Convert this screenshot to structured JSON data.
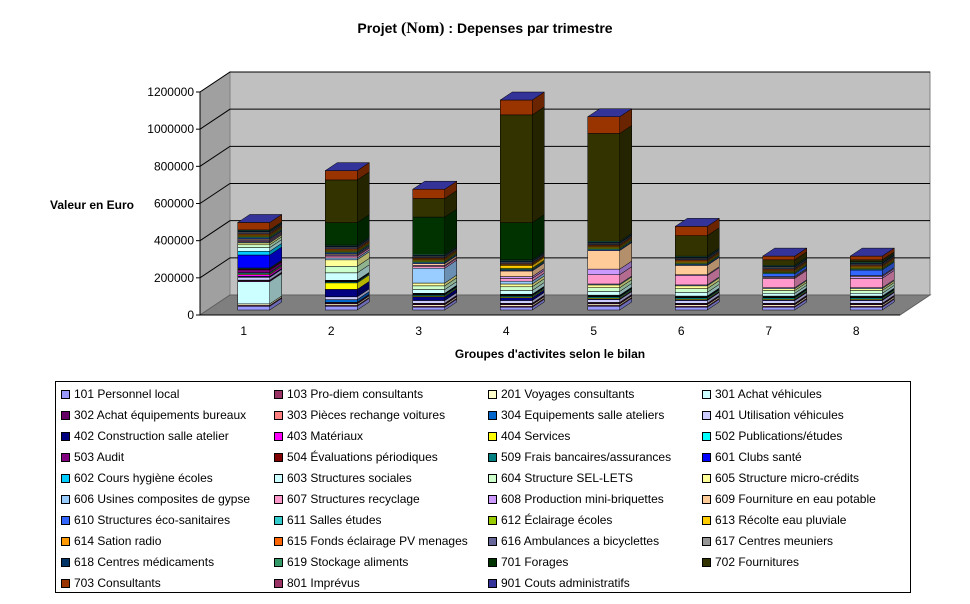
{
  "title": {
    "part1": "Projet ",
    "part2": "(Nom)",
    "part3": "  :  Depenses par trimestre"
  },
  "chart_data": {
    "type": "bar",
    "stacked": true,
    "three_d": true,
    "xlabel": "Groupes d'activites selon le bilan",
    "ylabel": "Valeur en Euro",
    "ylim": [
      0,
      1200000
    ],
    "yticks": [
      0,
      200000,
      400000,
      600000,
      800000,
      1000000,
      1200000
    ],
    "categories": [
      "1",
      "2",
      "3",
      "4",
      "5",
      "6",
      "7",
      "8"
    ],
    "grid": true,
    "legend_position": "bottom",
    "series": [
      {
        "name": "101 Personnel local",
        "color": "#9999ff",
        "values": [
          20000,
          20000,
          15000,
          15000,
          20000,
          15000,
          15000,
          15000
        ]
      },
      {
        "name": "103 Pro-diem consultants",
        "color": "#993366",
        "values": [
          5000,
          5000,
          5000,
          5000,
          5000,
          5000,
          5000,
          5000
        ]
      },
      {
        "name": "201 Voyages consultants",
        "color": "#ffffcc",
        "values": [
          8000,
          8000,
          8000,
          8000,
          8000,
          8000,
          8000,
          8000
        ]
      },
      {
        "name": "301 Achat véhicules",
        "color": "#ccffff",
        "values": [
          120000,
          0,
          0,
          0,
          0,
          0,
          0,
          0
        ]
      },
      {
        "name": "302 Achat équipements bureaux",
        "color": "#660066",
        "values": [
          5000,
          5000,
          5000,
          5000,
          5000,
          5000,
          5000,
          5000
        ]
      },
      {
        "name": "303 Pièces rechange voitures",
        "color": "#ff8080",
        "values": [
          3000,
          3000,
          3000,
          3000,
          3000,
          3000,
          3000,
          3000
        ]
      },
      {
        "name": "304 Equipements salle ateliers",
        "color": "#0066cc",
        "values": [
          0,
          15000,
          0,
          0,
          0,
          0,
          0,
          0
        ]
      },
      {
        "name": "401 Utilisation véhicules",
        "color": "#ccccff",
        "values": [
          15000,
          15000,
          15000,
          15000,
          15000,
          15000,
          15000,
          15000
        ]
      },
      {
        "name": "402 Construction salle atelier",
        "color": "#000080",
        "values": [
          5000,
          40000,
          20000,
          15000,
          5000,
          5000,
          5000,
          5000
        ]
      },
      {
        "name": "403 Matériaux",
        "color": "#ff00ff",
        "values": [
          10000,
          0,
          0,
          0,
          0,
          0,
          0,
          0
        ]
      },
      {
        "name": "404 Services",
        "color": "#ffff00",
        "values": [
          5000,
          35000,
          5000,
          5000,
          5000,
          5000,
          5000,
          5000
        ]
      },
      {
        "name": "502 Publications/études",
        "color": "#00ffff",
        "values": [
          5000,
          5000,
          5000,
          5000,
          5000,
          5000,
          5000,
          5000
        ]
      },
      {
        "name": "503 Audit",
        "color": "#800080",
        "values": [
          15000,
          3000,
          3000,
          3000,
          3000,
          3000,
          3000,
          3000
        ]
      },
      {
        "name": "504 Évaluations périodiques",
        "color": "#800000",
        "values": [
          5000,
          3000,
          3000,
          3000,
          3000,
          3000,
          3000,
          3000
        ]
      },
      {
        "name": "509 Frais bancaires/assurances",
        "color": "#008080",
        "values": [
          5000,
          3000,
          3000,
          3000,
          3000,
          3000,
          3000,
          3000
        ]
      },
      {
        "name": "601 Clubs santé",
        "color": "#0000ff",
        "values": [
          70000,
          0,
          0,
          0,
          0,
          0,
          0,
          0
        ]
      },
      {
        "name": "602 Cours hygiène écoles",
        "color": "#00ccff",
        "values": [
          20000,
          0,
          0,
          0,
          0,
          0,
          0,
          0
        ]
      },
      {
        "name": "603 Structures sociales",
        "color": "#ccffff",
        "values": [
          20000,
          40000,
          20000,
          20000,
          20000,
          20000,
          15000,
          15000
        ]
      },
      {
        "name": "604 Structure SEL-LETS",
        "color": "#ccffcc",
        "values": [
          15000,
          35000,
          20000,
          20000,
          20000,
          20000,
          15000,
          15000
        ]
      },
      {
        "name": "605 Structure micro-crédits",
        "color": "#ffff99",
        "values": [
          10000,
          35000,
          15000,
          15000,
          15000,
          15000,
          10000,
          10000
        ]
      },
      {
        "name": "606 Usines composites de gypse",
        "color": "#99ccff",
        "values": [
          5000,
          10000,
          80000,
          15000,
          5000,
          5000,
          5000,
          5000
        ]
      },
      {
        "name": "607 Structures recyclage",
        "color": "#ff99cc",
        "values": [
          5000,
          10000,
          10000,
          15000,
          50000,
          50000,
          50000,
          50000
        ]
      },
      {
        "name": "608 Production mini-briquettes",
        "color": "#cc99ff",
        "values": [
          5000,
          5000,
          5000,
          10000,
          30000,
          5000,
          5000,
          10000
        ]
      },
      {
        "name": "609 Fourniture en eau potable",
        "color": "#ffcc99",
        "values": [
          5000,
          5000,
          10000,
          30000,
          100000,
          50000,
          5000,
          5000
        ]
      },
      {
        "name": "610 Structures éco-sanitaires",
        "color": "#3366ff",
        "values": [
          5000,
          5000,
          5000,
          5000,
          5000,
          5000,
          15000,
          30000
        ]
      },
      {
        "name": "611 Salles études",
        "color": "#33cccc",
        "values": [
          5000,
          5000,
          5000,
          5000,
          5000,
          5000,
          5000,
          5000
        ]
      },
      {
        "name": "612 Éclairage écoles",
        "color": "#99cc00",
        "values": [
          5000,
          5000,
          5000,
          5000,
          5000,
          5000,
          5000,
          5000
        ]
      },
      {
        "name": "613 Récolte eau pluviale",
        "color": "#ffcc00",
        "values": [
          5000,
          5000,
          5000,
          15000,
          5000,
          5000,
          5000,
          5000
        ]
      },
      {
        "name": "614 Sation radio",
        "color": "#ff9900",
        "values": [
          5000,
          5000,
          5000,
          5000,
          5000,
          5000,
          5000,
          5000
        ]
      },
      {
        "name": "615 Fonds éclairage PV menages",
        "color": "#ff6600",
        "values": [
          5000,
          5000,
          5000,
          5000,
          5000,
          5000,
          5000,
          5000
        ]
      },
      {
        "name": "616 Ambulances  a bicyclettes",
        "color": "#666699",
        "values": [
          5000,
          5000,
          5000,
          5000,
          5000,
          5000,
          5000,
          5000
        ]
      },
      {
        "name": "617 Centres meuniers",
        "color": "#969696",
        "values": [
          5000,
          5000,
          5000,
          5000,
          5000,
          5000,
          5000,
          5000
        ]
      },
      {
        "name": "618 Centres médicaments",
        "color": "#003366",
        "values": [
          5000,
          5000,
          5000,
          5000,
          5000,
          5000,
          5000,
          5000
        ]
      },
      {
        "name": "619 Stockage aliments",
        "color": "#339966",
        "values": [
          5000,
          5000,
          5000,
          5000,
          5000,
          5000,
          5000,
          5000
        ]
      },
      {
        "name": "701 Forages",
        "color": "#003300",
        "values": [
          0,
          120000,
          200000,
          200000,
          0,
          0,
          0,
          0
        ]
      },
      {
        "name": "702 Fournitures",
        "color": "#333300",
        "values": [
          0,
          230000,
          100000,
          580000,
          580000,
          110000,
          30000,
          10000
        ]
      },
      {
        "name": "703 Consultants",
        "color": "#993300",
        "values": [
          40000,
          50000,
          50000,
          80000,
          90000,
          50000,
          20000,
          20000
        ]
      },
      {
        "name": "801 Imprévus",
        "color": "#993366",
        "values": [
          0,
          0,
          0,
          0,
          0,
          0,
          0,
          0
        ]
      },
      {
        "name": "901 Couts administratifs",
        "color": "#333399",
        "values": [
          0,
          0,
          0,
          0,
          0,
          0,
          0,
          0
        ]
      }
    ]
  }
}
